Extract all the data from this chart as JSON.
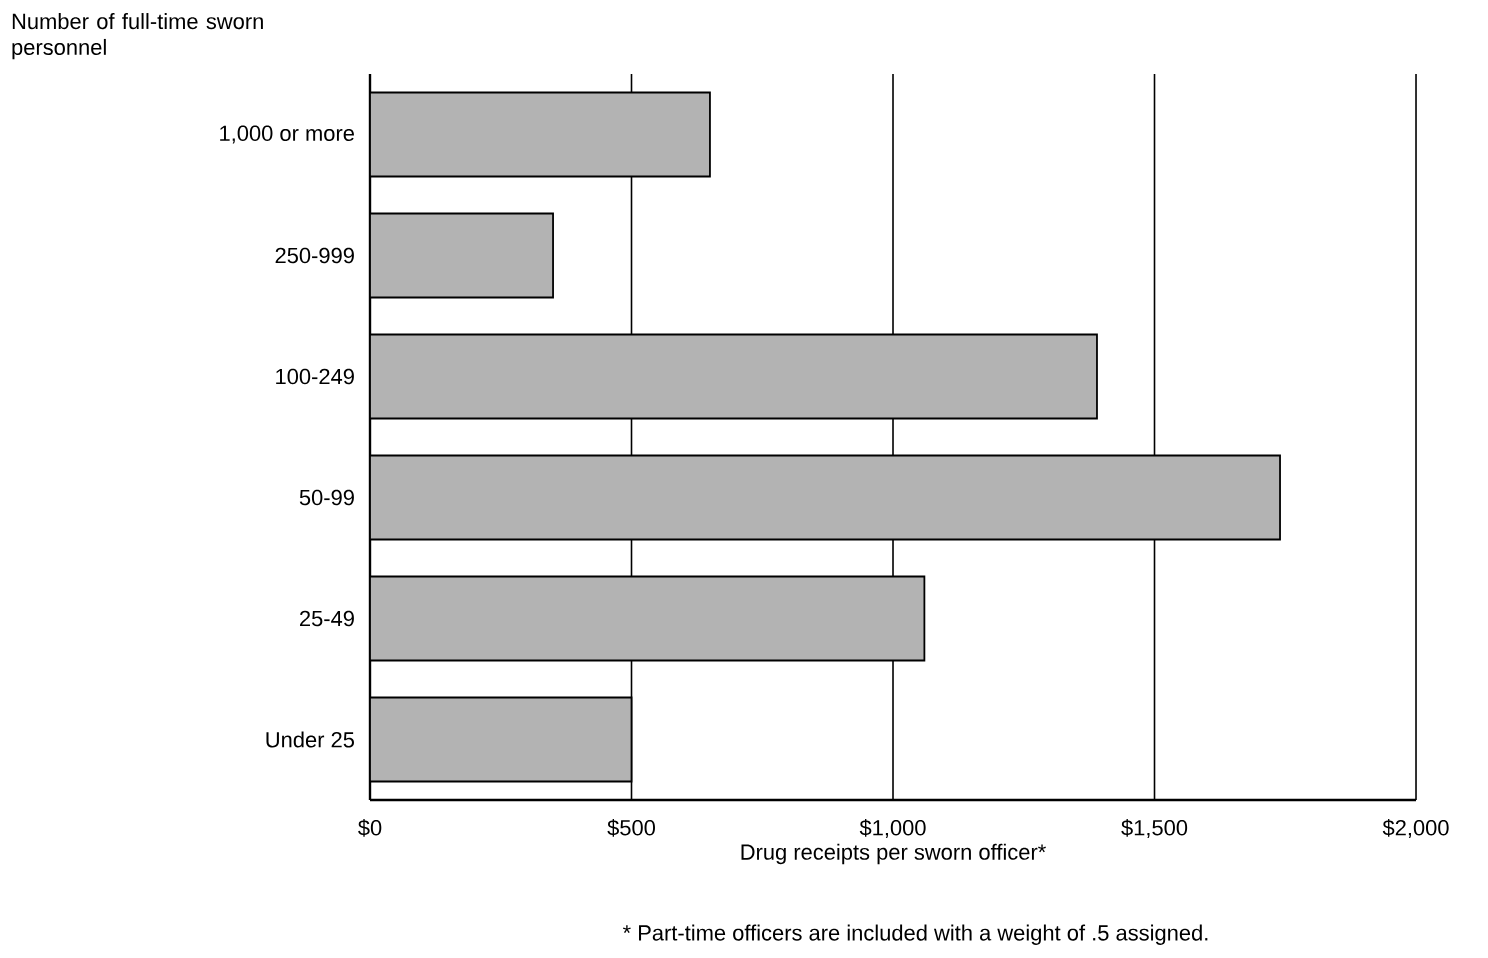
{
  "chart_data": {
    "type": "bar",
    "orientation": "horizontal",
    "ylabel": "Number of full-time sworn personnel",
    "xlabel": "Drug receipts per sworn officer*",
    "categories": [
      "1,000 or more",
      "250-999",
      "100-249",
      "50-99",
      "25-49",
      "Under 25"
    ],
    "values": [
      650,
      350,
      1390,
      1740,
      1060,
      500
    ],
    "color": "#b3b3b3",
    "xlim": [
      0,
      2000
    ],
    "xticks": [
      {
        "value": 0,
        "label": "$0"
      },
      {
        "value": 500,
        "label": "$500"
      },
      {
        "value": 1000,
        "label": "$1,000"
      },
      {
        "value": 1500,
        "label": "$1,500"
      },
      {
        "value": 2000,
        "label": "$2,000"
      }
    ],
    "grid": "x",
    "annotations": [
      "* Part-time officers are included with a weight of .5 assigned."
    ]
  }
}
